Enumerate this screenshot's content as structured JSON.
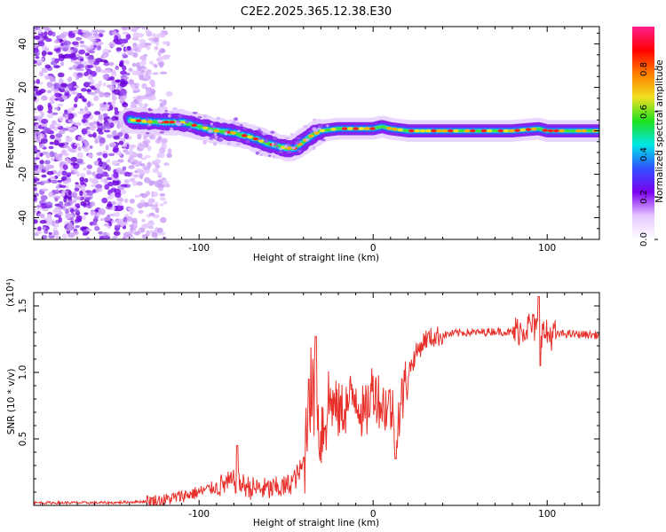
{
  "figure": {
    "title": "C2E2.2025.365.12.38.E30"
  },
  "chart_data": [
    {
      "type": "heatmap",
      "title": "C2E2.2025.365.12.38.E30",
      "xlabel": "Height of straight line (km)",
      "ylabel": "Frequency (Hz)",
      "xlim": [
        -195,
        130
      ],
      "ylim": [
        -50,
        48
      ],
      "xticks": [
        -100,
        0,
        100
      ],
      "yticks": [
        40,
        20,
        0,
        -20,
        -40
      ],
      "colorbar": {
        "label": "Normalized spectral amplitude",
        "range": [
          0,
          1
        ],
        "ticks": [
          0.0,
          0.2,
          0.4,
          0.6,
          0.8
        ],
        "tick_labels": [
          "0.0",
          "0.2",
          "0.4",
          "0.6",
          "0.8"
        ],
        "colormap": [
          "#ffffff",
          "#e5c7ff",
          "#7b00f0",
          "#3050ff",
          "#00e6e6",
          "#20e020",
          "#f0e020",
          "#ff8000",
          "#ff0000",
          "#ff2090"
        ]
      },
      "ridge": {
        "x": [
          -140,
          -125,
          -110,
          -100,
          -90,
          -80,
          -70,
          -60,
          -50,
          -45,
          -40,
          -35,
          -30,
          -20,
          -10,
          0,
          5,
          10,
          20,
          40,
          60,
          80,
          95,
          100,
          110,
          130
        ],
        "y": [
          5,
          4,
          4,
          2,
          0,
          -1,
          -3,
          -6,
          -8,
          -8,
          -5,
          -2,
          0,
          1,
          1,
          1,
          2,
          1,
          0,
          0,
          0,
          0,
          1,
          0,
          0,
          0
        ]
      }
    },
    {
      "type": "line",
      "xlabel": "Height of straight line (km)",
      "ylabel": "SNR (10 * v/v)",
      "y_multiplier_label": "(x10⁴)",
      "xlim": [
        -195,
        130
      ],
      "ylim": [
        0,
        1.6
      ],
      "xticks": [
        -100,
        0,
        100
      ],
      "yticks": [
        0.5,
        1.0,
        1.5
      ],
      "ytick_labels": [
        "0.5",
        "1.0",
        "1.5"
      ],
      "series": [
        {
          "name": "SNR",
          "color": "#e8302a",
          "anchors_x": [
            -195,
            -150,
            -130,
            -120,
            -110,
            -100,
            -90,
            -80,
            -70,
            -60,
            -50,
            -45,
            -40,
            -36,
            -33,
            -30,
            -25,
            -20,
            -15,
            -10,
            -5,
            0,
            5,
            10,
            13,
            15,
            20,
            25,
            30,
            40,
            50,
            60,
            70,
            80,
            90,
            95,
            100,
            110,
            130
          ],
          "anchors_y": [
            0.02,
            0.02,
            0.03,
            0.04,
            0.07,
            0.1,
            0.14,
            0.18,
            0.13,
            0.12,
            0.14,
            0.2,
            0.3,
            0.9,
            0.7,
            0.55,
            0.8,
            0.7,
            0.75,
            0.85,
            0.65,
            0.9,
            0.75,
            0.75,
            0.6,
            0.7,
            1.0,
            1.15,
            1.25,
            1.28,
            1.3,
            1.3,
            1.31,
            1.3,
            1.35,
            1.32,
            1.28,
            1.29,
            1.28
          ]
        }
      ]
    }
  ]
}
